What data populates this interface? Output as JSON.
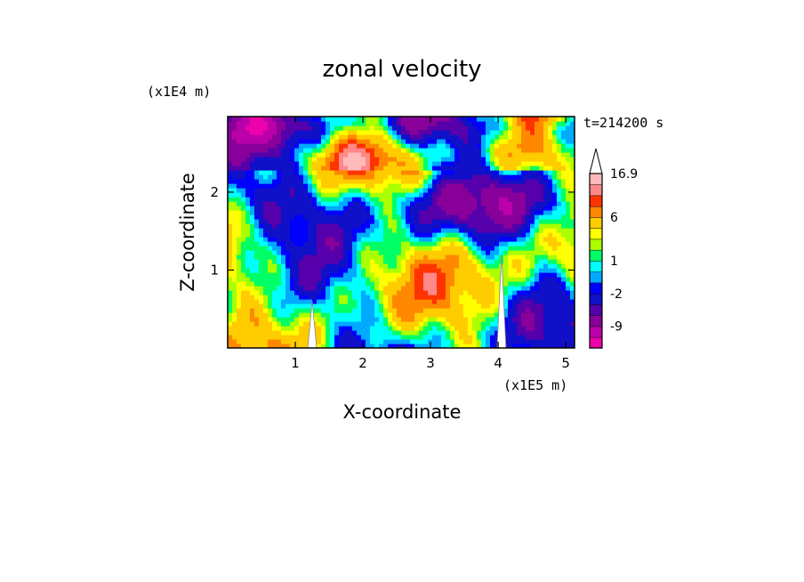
{
  "chart_data": {
    "type": "heatmap",
    "title": "zonal velocity",
    "xlabel": "X-coordinate",
    "ylabel": "Z-coordinate",
    "x_unit": "(x1E5 m)",
    "y_unit": "(x1E4 m)",
    "time_label": "t=214200 s",
    "xlim": [
      0,
      5.13
    ],
    "ylim": [
      0,
      2.97
    ],
    "x_ticks": [
      1,
      2,
      3,
      4,
      5
    ],
    "y_ticks": [
      1,
      2
    ],
    "x_tick_labels": [
      "1",
      "2",
      "3",
      "4",
      "5"
    ],
    "y_tick_labels": [
      "1",
      "2"
    ],
    "mountains": [
      {
        "x": 1.25,
        "height": 0.6
      },
      {
        "x": 4.05,
        "height": 1.2
      }
    ],
    "colorbar": {
      "labels": [
        "16.9",
        "6",
        "1",
        "-2",
        "-9"
      ],
      "levels": [
        -16,
        -12,
        -9,
        -6,
        -4,
        -2,
        -1,
        0,
        1,
        2,
        3,
        4,
        6,
        8,
        10,
        12,
        16.9
      ],
      "colors": [
        "#ee00aa",
        "#bb00aa",
        "#880099",
        "#5500aa",
        "#1010c8",
        "#0000ff",
        "#00aaff",
        "#00ffff",
        "#00ff66",
        "#aaff00",
        "#ffff00",
        "#ffcc00",
        "#ff8800",
        "#ff3300",
        "#ff8888",
        "#ffbbbb"
      ],
      "overflow_arrow": "top"
    },
    "grid": false,
    "legend": "right"
  }
}
